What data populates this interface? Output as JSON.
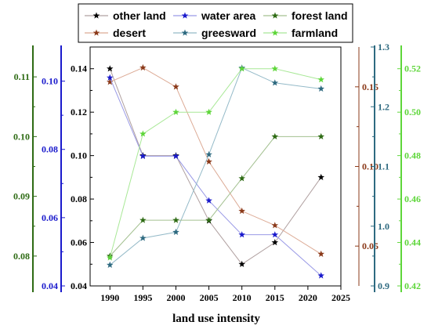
{
  "chart_data": {
    "type": "line",
    "xlabel": "land use intensity",
    "x_ticks": [
      "1990",
      "1995",
      "2000",
      "2005",
      "2010",
      "2015",
      "2020",
      "2025"
    ],
    "xlim": [
      1987,
      2025
    ],
    "legend_position": "top",
    "grid": false,
    "axes": [
      {
        "id": "black",
        "side": "left",
        "position": "inner",
        "color": "#000000",
        "ylim": [
          0.04,
          0.15
        ],
        "ticks": [
          "0.04",
          "0.06",
          "0.08",
          "0.10",
          "0.12",
          "0.14"
        ]
      },
      {
        "id": "blue",
        "side": "left",
        "position": "middle",
        "color": "#1a1acc",
        "ylim": [
          0.04,
          0.11
        ],
        "ticks": [
          "0.04",
          "0.06",
          "0.08",
          "0.10"
        ]
      },
      {
        "id": "darkgreen",
        "side": "left",
        "position": "outer",
        "color": "#2e6b14",
        "ylim": [
          0.075,
          0.115
        ],
        "ticks": [
          "0.08",
          "0.09",
          "0.10",
          "0.11"
        ]
      },
      {
        "id": "brown",
        "side": "right",
        "position": "inner",
        "color": "#8b3a1a",
        "ylim": [
          0.025,
          0.175
        ],
        "ticks": [
          "0.05",
          "0.10",
          "0.15"
        ]
      },
      {
        "id": "teal",
        "side": "right",
        "position": "middle",
        "color": "#2e6a80",
        "ylim": [
          0.9,
          1.3
        ],
        "ticks": [
          "0.9",
          "1.0",
          "1.1",
          "1.2",
          "1.3"
        ]
      },
      {
        "id": "lightgreen",
        "side": "right",
        "position": "outer",
        "color": "#5ed63a",
        "ylim": [
          0.42,
          0.53
        ],
        "ticks": [
          "0.42",
          "0.44",
          "0.46",
          "0.48",
          "0.50",
          "0.52"
        ]
      }
    ],
    "series": [
      {
        "name": "other land",
        "axis": "black",
        "color": "#000000",
        "line_color": "#b0a0a0",
        "x": [
          1990,
          1995,
          2000,
          2005,
          2010,
          2015,
          2022
        ],
        "values": [
          0.14,
          0.1,
          0.1,
          0.07,
          0.05,
          0.06,
          0.09
        ]
      },
      {
        "name": "desert",
        "axis": "brown",
        "color": "#8b3a1a",
        "line_color": "#dcaa95",
        "x": [
          1990,
          1995,
          2000,
          2005,
          2010,
          2015,
          2022
        ],
        "values": [
          0.153,
          0.162,
          0.15,
          0.103,
          0.072,
          0.063,
          0.045
        ]
      },
      {
        "name": "water area",
        "axis": "blue",
        "color": "#1a1acc",
        "line_color": "#9a9ae6",
        "x": [
          1990,
          1995,
          2000,
          2005,
          2010,
          2015,
          2022
        ],
        "values": [
          0.101,
          0.078,
          0.078,
          0.065,
          0.055,
          0.055,
          0.043
        ]
      },
      {
        "name": "greesward",
        "axis": "teal",
        "color": "#2e6a80",
        "line_color": "#94bac8",
        "x": [
          1990,
          1995,
          2000,
          2005,
          2010,
          2015,
          2022
        ],
        "values": [
          0.935,
          0.98,
          0.99,
          1.12,
          1.265,
          1.24,
          1.23
        ]
      },
      {
        "name": "forest land",
        "axis": "darkgreen",
        "color": "#2e6b14",
        "line_color": "#a3c090",
        "x": [
          1990,
          1995,
          2000,
          2005,
          2010,
          2015,
          2022
        ],
        "values": [
          0.08,
          0.086,
          0.086,
          0.086,
          0.093,
          0.1,
          0.1
        ]
      },
      {
        "name": "farmland",
        "axis": "lightgreen",
        "color": "#5ed63a",
        "line_color": "#a8e896",
        "x": [
          1990,
          1995,
          2000,
          2005,
          2010,
          2015,
          2022
        ],
        "values": [
          0.433,
          0.49,
          0.5,
          0.5,
          0.52,
          0.52,
          0.515
        ]
      }
    ],
    "legend": [
      "other land",
      "water area",
      "forest land",
      "desert",
      "greesward",
      "farmland"
    ]
  }
}
